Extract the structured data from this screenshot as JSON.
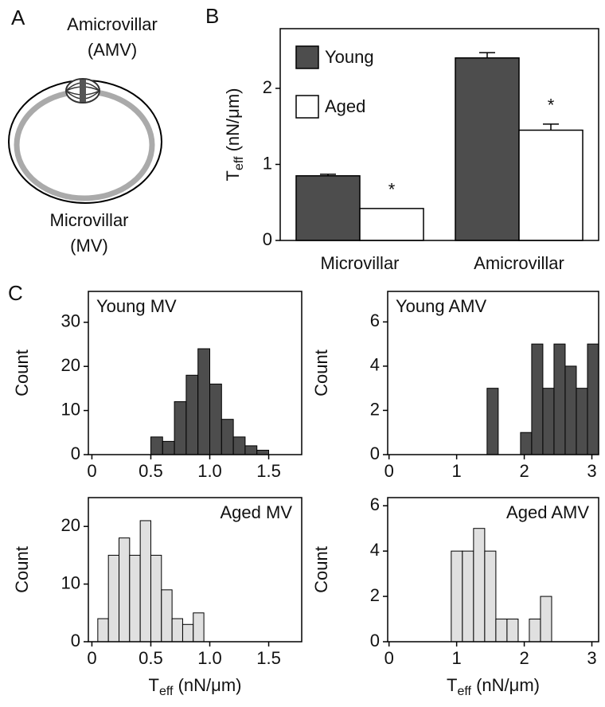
{
  "panels": {
    "a": "A",
    "b": "B",
    "c": "C"
  },
  "diagram": {
    "top": [
      "Amicrovillar",
      "(AMV)"
    ],
    "bottom": [
      "Microvillar",
      "(MV)"
    ]
  },
  "chart_data": [
    {
      "type": "grouped_bar",
      "categories": [
        "Microvillar",
        "Amicrovillar"
      ],
      "series": [
        {
          "name": "Young",
          "color": "#4d4d4d",
          "values": [
            0.85,
            2.4
          ],
          "errors": [
            0.02,
            0.07
          ]
        },
        {
          "name": "Aged",
          "color": "#ffffff",
          "values": [
            0.42,
            1.45
          ],
          "errors": [
            0,
            0.08
          ],
          "annotations": [
            "*",
            "*"
          ]
        }
      ],
      "ylabel_parts": [
        "T",
        "eff",
        " (nN/μm)"
      ],
      "ylim": [
        0,
        2.785
      ],
      "yticks": [
        0,
        1,
        2
      ],
      "legend": "upper left"
    },
    {
      "type": "histogram",
      "title": "Young MV",
      "title_corner": "upper left",
      "color": "#4d4d4d",
      "bins": [
        0.5,
        0.6,
        0.7,
        0.8,
        0.9,
        1.0,
        1.1,
        1.2,
        1.3,
        1.4,
        1.5
      ],
      "counts": [
        4,
        3,
        12,
        18,
        24,
        16,
        8,
        4,
        2,
        1
      ],
      "xlim": [
        -0.03,
        1.78
      ],
      "xticks": [
        0,
        0.5,
        {
          "value": 1,
          "label": "1.0"
        },
        1.5
      ],
      "ylim": [
        0,
        37
      ],
      "yticks": [
        0,
        10,
        20,
        30
      ],
      "ylabel": "Count"
    },
    {
      "type": "histogram",
      "title": "Young AMV",
      "title_corner": "upper left",
      "color": "#4d4d4d",
      "bins": [
        1.45,
        1.615,
        1.78,
        1.945,
        2.11,
        2.275,
        2.44,
        2.605,
        2.77,
        2.935,
        3.1
      ],
      "counts": [
        3,
        0,
        0,
        1,
        5,
        3,
        5,
        4,
        3,
        5
      ],
      "xlim": [
        -0.02,
        3.1
      ],
      "xticks": [
        0,
        1,
        2,
        3
      ],
      "ylim": [
        0,
        7.38
      ],
      "yticks": [
        0,
        2,
        4,
        6
      ],
      "ylabel": "Count"
    },
    {
      "type": "histogram",
      "title": "Aged MV",
      "title_corner": "upper right",
      "color": "#e0e0e0",
      "bins": [
        0.05,
        0.14,
        0.23,
        0.32,
        0.41,
        0.5,
        0.59,
        0.68,
        0.77,
        0.86,
        0.95
      ],
      "counts": [
        4,
        15,
        18,
        15,
        21,
        15,
        9,
        4,
        3,
        5
      ],
      "xlim": [
        -0.03,
        1.78
      ],
      "xticks": [
        0,
        0.5,
        {
          "value": 1,
          "label": "1.0"
        },
        1.5
      ],
      "ylim": [
        0,
        25
      ],
      "yticks": [
        0,
        10,
        20
      ],
      "ylabel": "Count",
      "xlabel_parts": [
        "T",
        "eff",
        " (nN/μm)"
      ]
    },
    {
      "type": "histogram",
      "title": "Aged AMV",
      "title_corner": "upper right",
      "color": "#e0e0e0",
      "bins": [
        0.92,
        1.085,
        1.25,
        1.415,
        1.58,
        1.745,
        1.91,
        2.075,
        2.24,
        2.405
      ],
      "counts": [
        4,
        4,
        5,
        4,
        1,
        1,
        0,
        1,
        2
      ],
      "xlim": [
        -0.02,
        3.1
      ],
      "xticks": [
        0,
        1,
        2,
        3
      ],
      "ylim": [
        0,
        6.36
      ],
      "yticks": [
        0,
        2,
        4,
        6
      ],
      "ylabel": "Count",
      "xlabel_parts": [
        "T",
        "eff",
        " (nN/μm)"
      ]
    }
  ]
}
